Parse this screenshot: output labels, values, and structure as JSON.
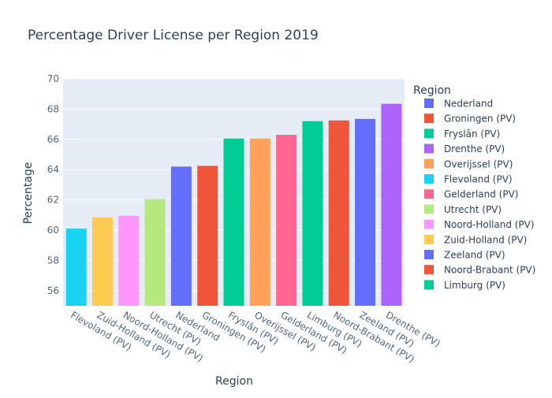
{
  "chart_data": {
    "type": "bar",
    "title": "Percentage Driver License per Region 2019",
    "xlabel": "Region",
    "ylabel": "Percentage",
    "ylim": [
      55,
      70
    ],
    "yticks": [
      56,
      58,
      60,
      62,
      64,
      66,
      68,
      70
    ],
    "grid": true,
    "legend_title": "Region",
    "legend_position": "right",
    "categories": [
      "Flevoland (PV)",
      "Zuid-Holland (PV)",
      "Noord-Holland (PV)",
      "Utrecht (PV)",
      "Nederland",
      "Groningen (PV)",
      "Fryslân (PV)",
      "Overijssel (PV)",
      "Gelderland (PV)",
      "Limburg (PV)",
      "Noord-Brabant (PV)",
      "Zeeland (PV)",
      "Drenthe (PV)"
    ],
    "values": [
      60.1,
      60.85,
      60.95,
      62.05,
      64.2,
      64.25,
      66.05,
      66.05,
      66.3,
      67.2,
      67.25,
      67.35,
      68.35
    ],
    "colors": [
      "#19d3f3",
      "#fecb52",
      "#ff97ff",
      "#b6e880",
      "#636efa",
      "#ef553b",
      "#00cc96",
      "#ffa15a",
      "#ff6692",
      "#00cc96",
      "#ef553b",
      "#636efa",
      "#ab63fa"
    ],
    "legend": [
      {
        "label": "Nederland",
        "color": "#636efa"
      },
      {
        "label": "Groningen (PV)",
        "color": "#ef553b"
      },
      {
        "label": "Fryslân (PV)",
        "color": "#00cc96"
      },
      {
        "label": "Drenthe (PV)",
        "color": "#ab63fa"
      },
      {
        "label": "Overijssel (PV)",
        "color": "#ffa15a"
      },
      {
        "label": "Flevoland (PV)",
        "color": "#19d3f3"
      },
      {
        "label": "Gelderland (PV)",
        "color": "#ff6692"
      },
      {
        "label": "Utrecht (PV)",
        "color": "#b6e880"
      },
      {
        "label": "Noord-Holland (PV)",
        "color": "#ff97ff"
      },
      {
        "label": "Zuid-Holland (PV)",
        "color": "#fecb52"
      },
      {
        "label": "Zeeland (PV)",
        "color": "#636efa"
      },
      {
        "label": "Noord-Brabant (PV)",
        "color": "#ef553b"
      },
      {
        "label": "Limburg (PV)",
        "color": "#00cc96"
      }
    ],
    "plot_background": "#e5ecf6",
    "grid_color": "#ffffff"
  }
}
